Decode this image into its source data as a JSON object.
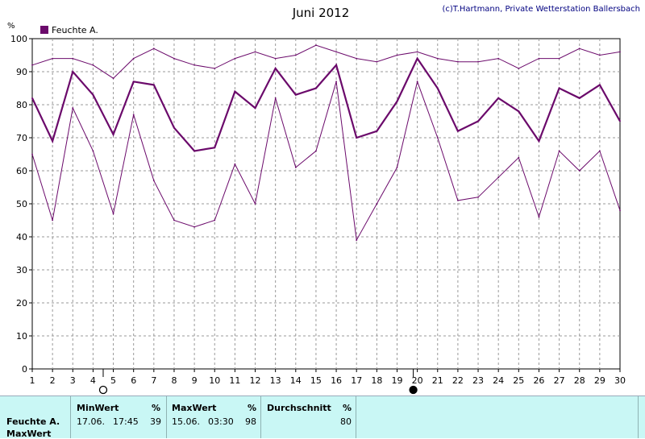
{
  "header": {
    "title": "Juni 2012",
    "credit": "(c)T.Hartmann, Private Wetterstation Ballersbach",
    "unit": "%"
  },
  "colors": {
    "series": "#6b0a6b",
    "grid": "#999999",
    "panel": "#c9f7f5"
  },
  "chart_data": {
    "type": "line",
    "title": "Juni 2012",
    "xlabel": "",
    "ylabel": "%",
    "xlim": [
      1,
      30
    ],
    "ylim": [
      0,
      100
    ],
    "grid": true,
    "legend": "top-left",
    "x": [
      1,
      2,
      3,
      4,
      5,
      6,
      7,
      8,
      9,
      10,
      11,
      12,
      13,
      14,
      15,
      16,
      17,
      18,
      19,
      20,
      21,
      22,
      23,
      24,
      25,
      26,
      27,
      28,
      29,
      30
    ],
    "xticks": [
      "1",
      "2",
      "3",
      "4",
      "5",
      "6",
      "7",
      "8",
      "9",
      "10",
      "11",
      "12",
      "13",
      "14",
      "15",
      "16",
      "17",
      "18",
      "19",
      "20",
      "21",
      "22",
      "23",
      "24",
      "25",
      "26",
      "27",
      "28",
      "29",
      "30"
    ],
    "yticks": [
      "0",
      "10",
      "20",
      "30",
      "40",
      "50",
      "60",
      "70",
      "80",
      "90",
      "100"
    ],
    "series": [
      {
        "name": "Feuchte A.",
        "role": "max",
        "values": [
          92,
          94,
          94,
          92,
          88,
          94,
          97,
          94,
          92,
          91,
          94,
          96,
          94,
          95,
          98,
          96,
          94,
          93,
          95,
          96,
          94,
          93,
          93,
          94,
          91,
          94,
          94,
          97,
          95,
          96
        ]
      },
      {
        "name": "Feuchte A.",
        "role": "mean",
        "values": [
          82,
          69,
          90,
          83,
          71,
          87,
          86,
          73,
          66,
          67,
          84,
          79,
          91,
          83,
          85,
          92,
          70,
          72,
          81,
          94,
          85,
          72,
          75,
          82,
          78,
          69,
          85,
          82,
          86,
          75
        ]
      },
      {
        "name": "Feuchte A.",
        "role": "min",
        "values": [
          65,
          45,
          79,
          66,
          47,
          77,
          57,
          45,
          43,
          45,
          62,
          50,
          82,
          61,
          66,
          87,
          39,
          50,
          61,
          87,
          70,
          51,
          52,
          58,
          64,
          46,
          66,
          60,
          66,
          48
        ]
      }
    ],
    "legend_entries": [
      "Feuchte A."
    ],
    "moon_markers": [
      {
        "x": 4.5,
        "phase": "full-moon"
      },
      {
        "x": 19.8,
        "phase": "new-moon"
      }
    ]
  },
  "stats": {
    "row_label": "Feuchte A.",
    "row_sub_label": "MaxWert",
    "min": {
      "header": "MinWert",
      "unit": "%",
      "date": "17.06.",
      "time": "17:45",
      "value": "39"
    },
    "max": {
      "header": "MaxWert",
      "unit": "%",
      "date": "15.06.",
      "time": "03:30",
      "value": "98"
    },
    "avg": {
      "header": "Durchschnitt",
      "unit": "%",
      "value": "80"
    }
  }
}
